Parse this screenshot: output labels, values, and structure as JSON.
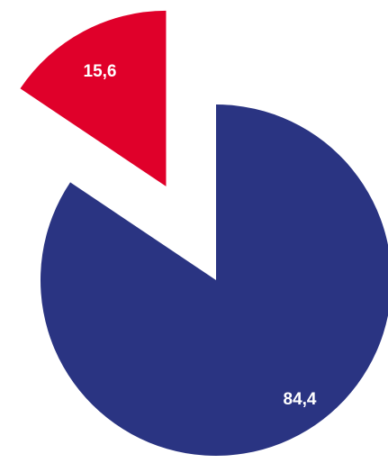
{
  "chart_data": {
    "type": "pie",
    "categories": [
      "",
      ""
    ],
    "values": [
      84.4,
      15.6
    ],
    "labels": [
      "84,4",
      "15,6"
    ],
    "colors": [
      "#2a3482",
      "#e0002a"
    ],
    "exploded": [
      false,
      true
    ],
    "start_angle_deg": 0,
    "direction": "clockwise",
    "title": "",
    "legend": "none"
  }
}
